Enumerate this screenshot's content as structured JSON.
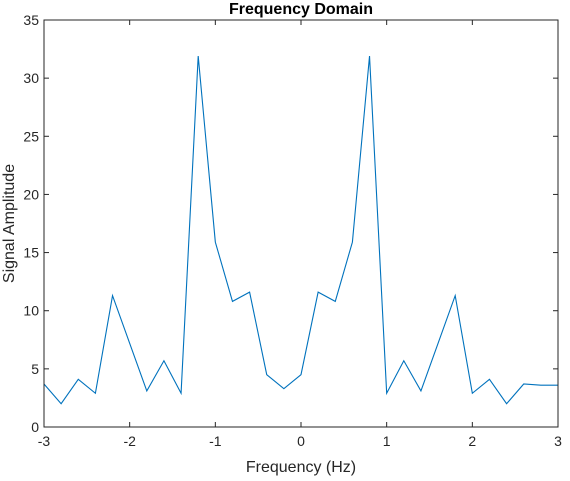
{
  "chart_data": {
    "type": "line",
    "title": "Frequency Domain",
    "xlabel": "Frequency (Hz)",
    "ylabel": "Signal Amplitude",
    "xlim": [
      -3,
      3
    ],
    "ylim": [
      0,
      35
    ],
    "xticks": [
      "-3",
      "-2",
      "-1",
      "0",
      "1",
      "2",
      "3"
    ],
    "yticks": [
      "0",
      "5",
      "10",
      "15",
      "20",
      "25",
      "30",
      "35"
    ],
    "grid": false,
    "series": [
      {
        "color": "#0072BD",
        "x": [
          -3.0,
          -2.8,
          -2.6,
          -2.4,
          -2.2,
          -2.0,
          -1.8,
          -1.6,
          -1.4,
          -1.2,
          -1.0,
          -0.8,
          -0.6,
          -0.4,
          -0.2,
          0.0,
          0.2,
          0.4,
          0.6,
          0.8,
          1.0,
          1.2,
          1.4,
          1.6,
          1.8,
          2.0,
          2.2,
          2.4,
          2.6,
          2.8,
          3.0
        ],
        "values": [
          3.7,
          2.0,
          4.1,
          2.9,
          11.3,
          7.2,
          3.1,
          5.7,
          2.9,
          31.9,
          15.9,
          10.8,
          11.6,
          4.5,
          3.3,
          4.5,
          11.6,
          10.8,
          15.9,
          31.9,
          2.9,
          5.7,
          3.1,
          7.2,
          11.3,
          2.9,
          4.1,
          2.0,
          3.7,
          3.6,
          3.6
        ]
      }
    ]
  }
}
